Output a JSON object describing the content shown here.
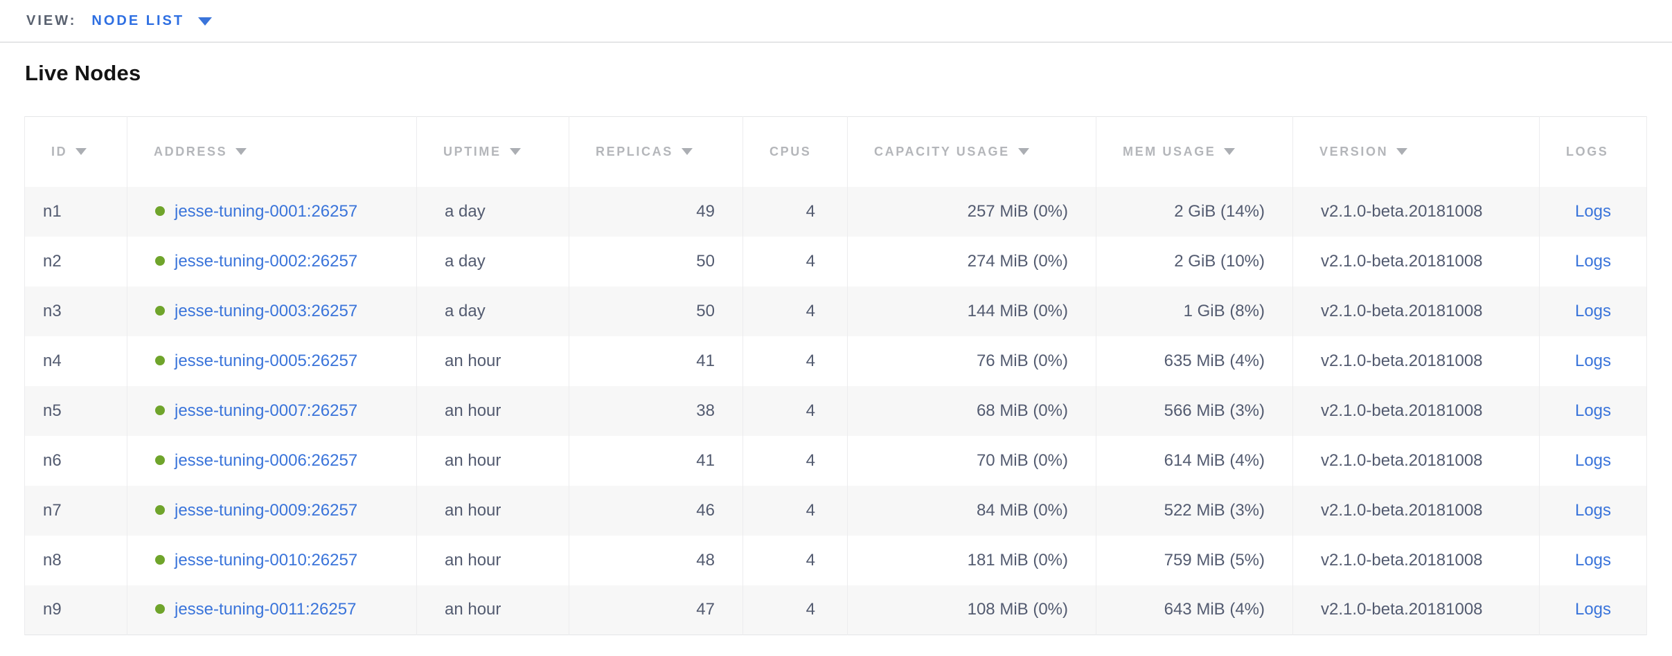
{
  "view_bar": {
    "label": "VIEW:",
    "selected": "NODE LIST"
  },
  "page": {
    "title": "Live Nodes"
  },
  "colors": {
    "link_blue": "#3a74da",
    "view_link_blue": "#2e6fe2",
    "node_status_green": "#6fa42b",
    "header_gray": "#b4b6ba",
    "cell_text": "#535b70",
    "row_stripe": "#f7f7f7"
  },
  "table": {
    "columns": [
      {
        "key": "id",
        "label": "ID",
        "sort_icon": true
      },
      {
        "key": "address",
        "label": "ADDRESS",
        "sort_icon": true
      },
      {
        "key": "uptime",
        "label": "UPTIME",
        "sort_icon": true
      },
      {
        "key": "replicas",
        "label": "REPLICAS",
        "sort_icon": true
      },
      {
        "key": "cpus",
        "label": "CPUS",
        "sort_icon": false
      },
      {
        "key": "capacity",
        "label": "CAPACITY USAGE",
        "sort_icon": true
      },
      {
        "key": "mem",
        "label": "MEM USAGE",
        "sort_icon": true
      },
      {
        "key": "version",
        "label": "VERSION",
        "sort_icon": true
      },
      {
        "key": "logs",
        "label": "LOGS",
        "sort_icon": false
      }
    ],
    "rows": [
      {
        "id": "n1",
        "address": "jesse-tuning-0001:26257",
        "uptime": "a day",
        "replicas": "49",
        "cpus": "4",
        "capacity": "257 MiB (0%)",
        "mem": "2 GiB (14%)",
        "version": "v2.1.0-beta.20181008",
        "logs": "Logs"
      },
      {
        "id": "n2",
        "address": "jesse-tuning-0002:26257",
        "uptime": "a day",
        "replicas": "50",
        "cpus": "4",
        "capacity": "274 MiB (0%)",
        "mem": "2 GiB (10%)",
        "version": "v2.1.0-beta.20181008",
        "logs": "Logs"
      },
      {
        "id": "n3",
        "address": "jesse-tuning-0003:26257",
        "uptime": "a day",
        "replicas": "50",
        "cpus": "4",
        "capacity": "144 MiB (0%)",
        "mem": "1 GiB (8%)",
        "version": "v2.1.0-beta.20181008",
        "logs": "Logs"
      },
      {
        "id": "n4",
        "address": "jesse-tuning-0005:26257",
        "uptime": "an hour",
        "replicas": "41",
        "cpus": "4",
        "capacity": "76 MiB (0%)",
        "mem": "635 MiB (4%)",
        "version": "v2.1.0-beta.20181008",
        "logs": "Logs"
      },
      {
        "id": "n5",
        "address": "jesse-tuning-0007:26257",
        "uptime": "an hour",
        "replicas": "38",
        "cpus": "4",
        "capacity": "68 MiB (0%)",
        "mem": "566 MiB (3%)",
        "version": "v2.1.0-beta.20181008",
        "logs": "Logs"
      },
      {
        "id": "n6",
        "address": "jesse-tuning-0006:26257",
        "uptime": "an hour",
        "replicas": "41",
        "cpus": "4",
        "capacity": "70 MiB (0%)",
        "mem": "614 MiB (4%)",
        "version": "v2.1.0-beta.20181008",
        "logs": "Logs"
      },
      {
        "id": "n7",
        "address": "jesse-tuning-0009:26257",
        "uptime": "an hour",
        "replicas": "46",
        "cpus": "4",
        "capacity": "84 MiB (0%)",
        "mem": "522 MiB (3%)",
        "version": "v2.1.0-beta.20181008",
        "logs": "Logs"
      },
      {
        "id": "n8",
        "address": "jesse-tuning-0010:26257",
        "uptime": "an hour",
        "replicas": "48",
        "cpus": "4",
        "capacity": "181 MiB (0%)",
        "mem": "759 MiB (5%)",
        "version": "v2.1.0-beta.20181008",
        "logs": "Logs"
      },
      {
        "id": "n9",
        "address": "jesse-tuning-0011:26257",
        "uptime": "an hour",
        "replicas": "47",
        "cpus": "4",
        "capacity": "108 MiB (0%)",
        "mem": "643 MiB (4%)",
        "version": "v2.1.0-beta.20181008",
        "logs": "Logs"
      }
    ]
  }
}
